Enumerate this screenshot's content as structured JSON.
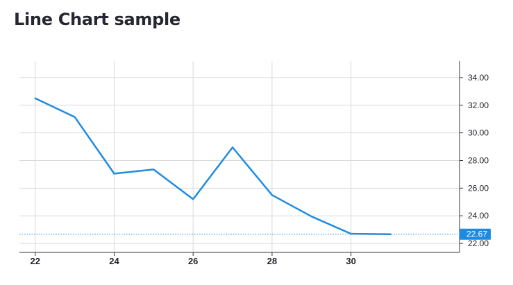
{
  "page": {
    "title": "Line Chart sample"
  },
  "chart_data": {
    "type": "line",
    "title": "Line Chart sample",
    "x": [
      22,
      23,
      24,
      25,
      26,
      27,
      28,
      29,
      30,
      31
    ],
    "series": [
      {
        "values": [
          32.5,
          31.15,
          27.05,
          27.35,
          25.2,
          28.95,
          25.5,
          23.95,
          22.7,
          22.67
        ]
      }
    ],
    "xlim": [
      21.6,
      32.75
    ],
    "ylim": [
      21.35,
      35.2
    ],
    "x_ticks": [
      22,
      24,
      26,
      28,
      30
    ],
    "x_tick_labels": [
      "22",
      "24",
      "26",
      "28",
      "30"
    ],
    "y_ticks": [
      22,
      24,
      26,
      28,
      30,
      32,
      34
    ],
    "y_tick_labels": [
      "22.00",
      "24.00",
      "26.00",
      "28.00",
      "30.00",
      "32.00",
      "34.00"
    ],
    "last_value": 22.67,
    "last_value_label": "22.67",
    "grid": true,
    "y_axis_position": "right",
    "colors": {
      "line": "#1f8be0",
      "grid": "#d9d9d9",
      "axis": "#333333",
      "label_bg": "#1f8be0"
    }
  }
}
